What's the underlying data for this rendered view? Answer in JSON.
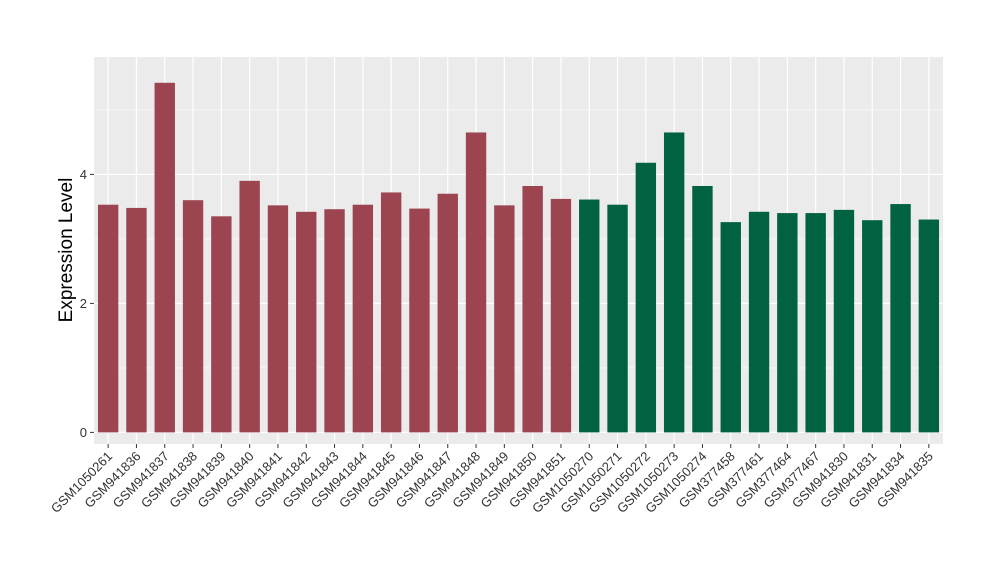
{
  "chart_data": {
    "type": "bar",
    "title": "",
    "xlabel": "",
    "ylabel": "Expression Level",
    "ylim": [
      -0.18,
      5.82
    ],
    "y_ticks": [
      0,
      2,
      4
    ],
    "grid": true,
    "legend": "none",
    "colors": {
      "group_a": "#9c4450",
      "group_b": "#006241",
      "panel_bg": "#ebebeb",
      "grid": "#ffffff"
    },
    "categories": [
      "GSM1050261",
      "GSM941836",
      "GSM941837",
      "GSM941838",
      "GSM941839",
      "GSM941840",
      "GSM941841",
      "GSM941842",
      "GSM941843",
      "GSM941844",
      "GSM941845",
      "GSM941846",
      "GSM941847",
      "GSM941848",
      "GSM941849",
      "GSM941850",
      "GSM941851",
      "GSM1050270",
      "GSM1050271",
      "GSM1050272",
      "GSM1050273",
      "GSM1050274",
      "GSM377458",
      "GSM377461",
      "GSM377464",
      "GSM377467",
      "GSM941830",
      "GSM941831",
      "GSM941834",
      "GSM941835"
    ],
    "values": [
      3.53,
      3.48,
      5.42,
      3.6,
      3.35,
      3.9,
      3.52,
      3.42,
      3.46,
      3.53,
      3.72,
      3.47,
      3.7,
      4.65,
      3.52,
      3.82,
      3.62,
      3.61,
      3.53,
      4.18,
      4.65,
      3.82,
      3.26,
      3.42,
      3.4,
      3.4,
      3.45,
      3.29,
      3.54,
      3.3
    ],
    "groups": [
      "a",
      "a",
      "a",
      "a",
      "a",
      "a",
      "a",
      "a",
      "a",
      "a",
      "a",
      "a",
      "a",
      "a",
      "a",
      "a",
      "a",
      "b",
      "b",
      "b",
      "b",
      "b",
      "b",
      "b",
      "b",
      "b",
      "b",
      "b",
      "b",
      "b"
    ]
  }
}
